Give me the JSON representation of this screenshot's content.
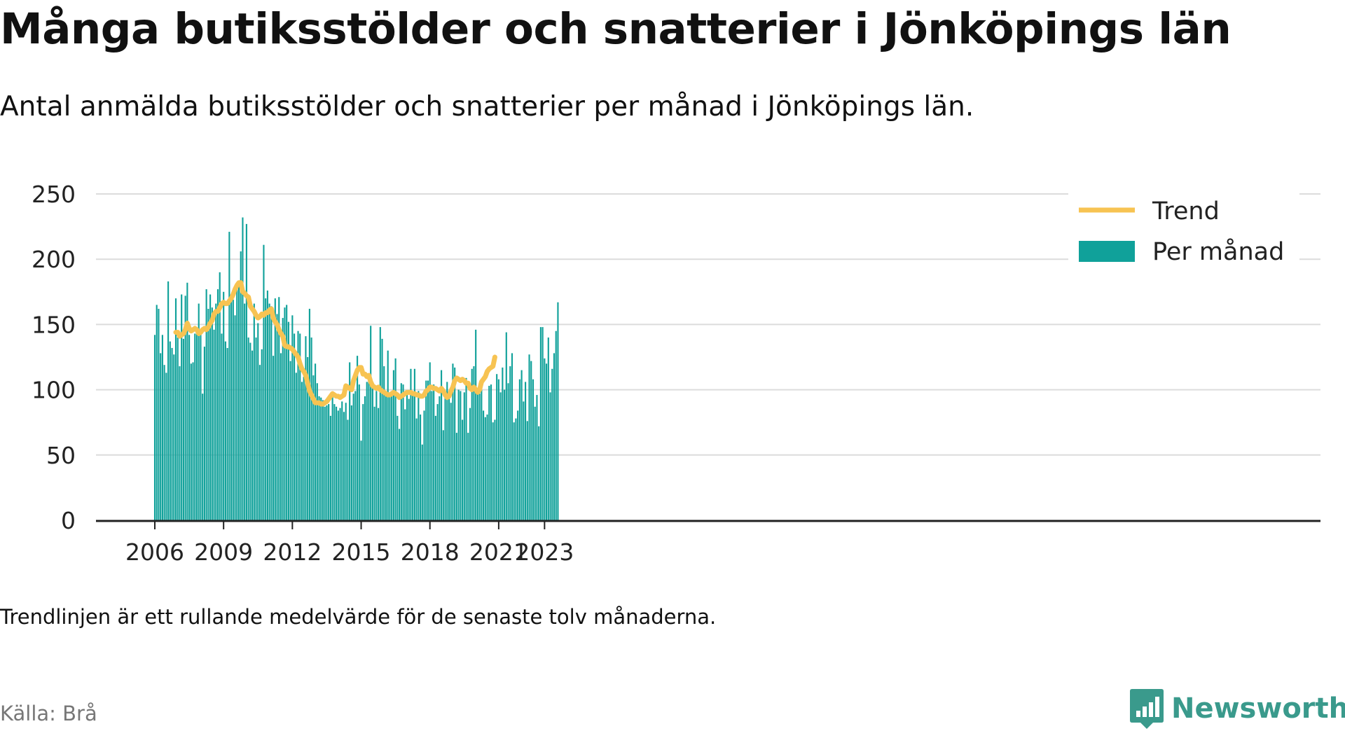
{
  "title": "Många butiksstölder och snatterier i Jönköpings län",
  "subtitle": "Antal anmälda butiksstölder och snatterier per månad i Jönköpings län.",
  "footnote": "Trendlinjen är ett rullande medelvärde för de senaste tolv månaderna.",
  "source": "Källa: Brå",
  "brand": {
    "name": "Newsworthy",
    "icon": "bar-chart-speech-bubble-icon",
    "color": "#3a9a8c"
  },
  "chart_data": {
    "type": "bar",
    "start": "2006-01",
    "ylim": [
      0,
      250
    ],
    "yticks": [
      0,
      50,
      100,
      150,
      200,
      250
    ],
    "xticks": [
      "2006",
      "2009",
      "2012",
      "2015",
      "2018",
      "2021",
      "2023"
    ],
    "grid": true,
    "legend_position": "top-right",
    "colors": {
      "bars": "#10a19a",
      "trend": "#f7c352",
      "grid": "#dcdcdc",
      "axis": "#222222"
    },
    "series": [
      {
        "name": "Per månad",
        "type": "bar",
        "values": [
          142,
          165,
          162,
          128,
          142,
          119,
          113,
          183,
          137,
          132,
          127,
          170,
          140,
          118,
          173,
          139,
          172,
          182,
          142,
          120,
          121,
          143,
          147,
          166,
          146,
          97,
          133,
          177,
          162,
          173,
          163,
          146,
          166,
          177,
          190,
          143,
          175,
          137,
          132,
          221,
          168,
          169,
          157,
          180,
          182,
          206,
          232,
          166,
          227,
          140,
          136,
          130,
          166,
          140,
          151,
          119,
          131,
          211,
          170,
          176,
          166,
          164,
          126,
          170,
          158,
          171,
          128,
          155,
          163,
          165,
          152,
          122,
          157,
          143,
          113,
          145,
          143,
          106,
          110,
          141,
          125,
          162,
          140,
          111,
          120,
          105,
          95,
          94,
          92,
          87,
          88,
          89,
          80,
          97,
          89,
          87,
          84,
          86,
          91,
          83,
          90,
          77,
          121,
          88,
          97,
          99,
          126,
          104,
          61,
          89,
          95,
          106,
          110,
          149,
          106,
          87,
          99,
          86,
          148,
          139,
          118,
          98,
          130,
          98,
          99,
          115,
          124,
          80,
          70,
          105,
          104,
          85,
          98,
          93,
          116,
          96,
          116,
          78,
          99,
          81,
          58,
          84,
          107,
          107,
          121,
          99,
          104,
          80,
          89,
          95,
          115,
          69,
          94,
          106,
          98,
          90,
          120,
          117,
          67,
          100,
          99,
          77,
          98,
          109,
          67,
          86,
          116,
          118,
          146,
          100,
          97,
          100,
          84,
          79,
          81,
          103,
          104,
          75,
          77,
          112,
          108,
          98,
          117,
          100,
          144,
          105,
          118,
          128,
          75,
          78,
          84,
          108,
          115,
          91,
          106,
          76,
          127,
          122,
          108,
          87,
          96,
          72,
          148,
          148,
          124,
          120,
          140,
          98,
          116,
          128,
          145,
          167
        ],
        "color": "#10a19a"
      },
      {
        "name": "Trend",
        "type": "line",
        "start": "2006-12",
        "values": [
          144,
          144,
          141,
          142,
          143,
          146,
          151,
          147,
          145,
          146,
          147,
          146,
          143,
          144,
          146,
          147,
          146,
          148,
          151,
          153,
          158,
          160,
          160,
          163,
          166,
          167,
          166,
          166,
          168,
          170,
          173,
          177,
          180,
          182,
          182,
          175,
          174,
          172,
          171,
          164,
          162,
          160,
          157,
          155,
          156,
          158,
          157,
          159,
          159,
          161,
          162,
          155,
          152,
          150,
          146,
          143,
          141,
          134,
          133,
          133,
          132,
          131,
          129,
          127,
          125,
          120,
          116,
          114,
          111,
          105,
          99,
          96,
          93,
          90,
          90,
          90,
          89,
          89,
          90,
          91,
          93,
          95,
          97,
          96,
          95,
          95,
          94,
          95,
          96,
          103,
          102,
          101,
          100,
          107,
          111,
          115,
          117,
          117,
          112,
          112,
          110,
          111,
          106,
          103,
          102,
          101,
          102,
          100,
          99,
          98,
          97,
          96,
          96,
          97,
          98,
          97,
          96,
          94,
          95,
          96,
          97,
          98,
          98,
          98,
          97,
          97,
          96,
          96,
          95,
          95,
          96,
          99,
          100,
          102,
          102,
          101,
          101,
          100,
          99,
          101,
          99,
          96,
          94,
          95,
          99,
          102,
          107,
          109,
          108,
          107,
          108,
          107,
          105,
          105,
          101,
          100,
          102,
          100,
          98,
          100,
          106,
          108,
          110,
          114,
          116,
          117,
          118,
          125
        ]
      }
    ]
  }
}
